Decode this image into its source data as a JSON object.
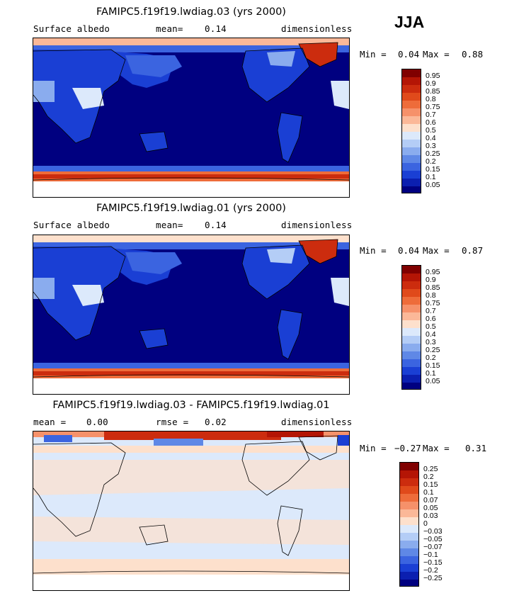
{
  "season": "JJA",
  "panels": [
    {
      "title": "FAMIPC5.f19f19.lwdiag.03 (yrs 2000)",
      "left_label": "Surface albedo",
      "mid_label": "mean=",
      "mid_value": "0.14",
      "right_label": "dimensionless",
      "min_label": "Min =",
      "min_value": "0.04",
      "max_label": "Max =",
      "max_value": "0.88",
      "colorbar_labels": [
        "0.95",
        "0.9",
        "0.85",
        "0.8",
        "0.75",
        "0.7",
        "0.6",
        "0.5",
        "0.4",
        "0.3",
        "0.25",
        "0.2",
        "0.15",
        "0.1",
        "0.05"
      ]
    },
    {
      "title": "FAMIPC5.f19f19.lwdiag.01 (yrs 2000)",
      "left_label": "Surface albedo",
      "mid_label": "mean=",
      "mid_value": "0.14",
      "right_label": "dimensionless",
      "min_label": "Min =",
      "min_value": "0.04",
      "max_label": "Max =",
      "max_value": "0.87",
      "colorbar_labels": [
        "0.95",
        "0.9",
        "0.85",
        "0.8",
        "0.75",
        "0.7",
        "0.6",
        "0.5",
        "0.4",
        "0.3",
        "0.25",
        "0.2",
        "0.15",
        "0.1",
        "0.05"
      ]
    },
    {
      "title": "FAMIPC5.f19f19.lwdiag.03 - FAMIPC5.f19f19.lwdiag.01",
      "left_label": "mean =",
      "left_value": "0.00",
      "mid_label": "rmse =",
      "mid_value": "0.02",
      "right_label": "dimensionless",
      "min_label": "Min =",
      "min_value": "−0.27",
      "max_label": "Max =",
      "max_value": "0.31",
      "colorbar_labels": [
        "0.25",
        "0.2",
        "0.15",
        "0.1",
        "0.07",
        "0.05",
        "0.03",
        "0",
        "−0.03",
        "−0.05",
        "−0.07",
        "−0.1",
        "−0.15",
        "−0.2",
        "−0.25"
      ]
    }
  ],
  "colors": {
    "abs_scale": [
      "#800000",
      "#b41505",
      "#cc2c0e",
      "#e04a1b",
      "#ee6c3a",
      "#f6916a",
      "#fbb898",
      "#fde0cc",
      "#dce9fb",
      "#b4cdf6",
      "#8aacee",
      "#5f88e6",
      "#3b64e0",
      "#1a3fd4",
      "#0b1fb0",
      "#000080"
    ],
    "diff_scale": [
      "#800000",
      "#b41505",
      "#cc2c0e",
      "#e04a1b",
      "#ee6c3a",
      "#f6916a",
      "#fbb898",
      "#fde0cc",
      "#dce9fb",
      "#b4cdf6",
      "#8aacee",
      "#5f88e6",
      "#3b64e0",
      "#1a3fd4",
      "#0b1fb0",
      "#000080"
    ]
  },
  "chart_data": [
    {
      "type": "heatmap",
      "title": "FAMIPC5.f19f19.lwdiag.03 (yrs 2000)",
      "variable": "Surface albedo",
      "units": "dimensionless",
      "mean": 0.14,
      "min": 0.04,
      "max": 0.88,
      "levels": [
        0.05,
        0.1,
        0.15,
        0.2,
        0.25,
        0.3,
        0.4,
        0.5,
        0.6,
        0.7,
        0.75,
        0.8,
        0.85,
        0.9,
        0.95
      ]
    },
    {
      "type": "heatmap",
      "title": "FAMIPC5.f19f19.lwdiag.01 (yrs 2000)",
      "variable": "Surface albedo",
      "units": "dimensionless",
      "mean": 0.14,
      "min": 0.04,
      "max": 0.87,
      "levels": [
        0.05,
        0.1,
        0.15,
        0.2,
        0.25,
        0.3,
        0.4,
        0.5,
        0.6,
        0.7,
        0.75,
        0.8,
        0.85,
        0.9,
        0.95
      ]
    },
    {
      "type": "heatmap",
      "title": "FAMIPC5.f19f19.lwdiag.03 - FAMIPC5.f19f19.lwdiag.01",
      "units": "dimensionless",
      "mean": 0.0,
      "rmse": 0.02,
      "min": -0.27,
      "max": 0.31,
      "levels": [
        -0.25,
        -0.2,
        -0.15,
        -0.1,
        -0.07,
        -0.05,
        -0.03,
        0,
        0.03,
        0.05,
        0.07,
        0.1,
        0.15,
        0.2,
        0.25
      ]
    }
  ]
}
